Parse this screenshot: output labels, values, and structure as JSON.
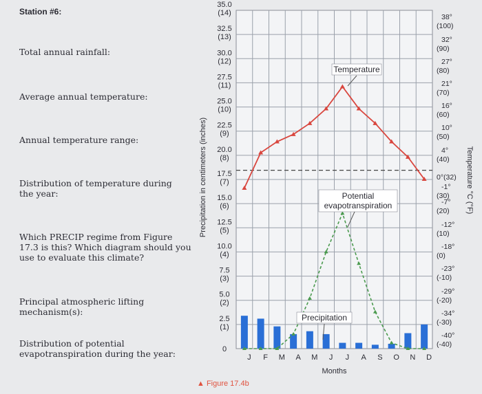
{
  "worksheet": {
    "station": "Station #6:",
    "questions": [
      "Total annual rainfall:",
      "Average annual temperature:",
      "Annual temperature range:",
      "Distribution of temperature during the year:",
      "Which PRECIP regime from Figure 17.3 is this? Which diagram should you use to evaluate this climate?",
      "Principal atmospheric lifting mechanism(s):",
      "Distribution of potential evapotranspiration during the year:"
    ],
    "caption": "▲ Figure 17.4b"
  },
  "chart_data": {
    "type": "line",
    "xlabel": "Months",
    "ylabel_left": "Precipitation in centimeters (inches)",
    "ylabel_right": "Temperature °C (°F)",
    "categories": [
      "J",
      "F",
      "M",
      "A",
      "M",
      "J",
      "J",
      "A",
      "S",
      "O",
      "N",
      "D"
    ],
    "left_ticks": [
      {
        "cm": "35.0",
        "in": "(14)"
      },
      {
        "cm": "32.5",
        "in": "(13)"
      },
      {
        "cm": "30.0",
        "in": "(12)"
      },
      {
        "cm": "27.5",
        "in": "(11)"
      },
      {
        "cm": "25.0",
        "in": "(10)"
      },
      {
        "cm": "22.5",
        "in": "(9)"
      },
      {
        "cm": "20.0",
        "in": "(8)"
      },
      {
        "cm": "17.5",
        "in": "(7)"
      },
      {
        "cm": "15.0",
        "in": "(6)"
      },
      {
        "cm": "12.5",
        "in": "(5)"
      },
      {
        "cm": "10.0",
        "in": "(4)"
      },
      {
        "cm": "7.5",
        "in": "(3)"
      },
      {
        "cm": "5.0",
        "in": "(2)"
      },
      {
        "cm": "2.5",
        "in": "(1)"
      },
      {
        "cm": "0",
        "in": ""
      }
    ],
    "right_ticks": [
      {
        "c": "38°",
        "f": "(100)"
      },
      {
        "c": "32°",
        "f": "(90)"
      },
      {
        "c": "27°",
        "f": "(80)"
      },
      {
        "c": "21°",
        "f": "(70)"
      },
      {
        "c": "16°",
        "f": "(60)"
      },
      {
        "c": "10°",
        "f": "(50)"
      },
      {
        "c": "4°",
        "f": "(40)"
      },
      {
        "c": "0°",
        "f": "(32)"
      },
      {
        "c": "-1°",
        "f": "(30)"
      },
      {
        "c": "-7°",
        "f": "(20)"
      },
      {
        "c": "-12°",
        "f": "(10)"
      },
      {
        "c": "-18°",
        "f": "(0)"
      },
      {
        "c": "-23°",
        "f": "(-10)"
      },
      {
        "c": "-29°",
        "f": "(-20)"
      },
      {
        "c": "-34°",
        "f": "(-30)"
      },
      {
        "c": "-40°",
        "f": "(-40)"
      }
    ],
    "ylim": [
      0,
      35
    ],
    "series": [
      {
        "name": "Temperature",
        "units": "°C",
        "color": "#d9463e",
        "values": [
          -4,
          4,
          7,
          9,
          12,
          16,
          21,
          16,
          12,
          7,
          3,
          -2
        ]
      },
      {
        "name": "Potential evapotranspiration",
        "units": "cm",
        "color": "#4a9a4e",
        "values": [
          0,
          0,
          0,
          1.5,
          5.2,
          10,
          14,
          8.8,
          3.8,
          0.6,
          0,
          0
        ]
      },
      {
        "name": "Precipitation",
        "units": "cm",
        "color": "#2a6fd6",
        "values": [
          3.4,
          3.1,
          2.3,
          1.5,
          1.8,
          1.5,
          0.6,
          0.6,
          0.4,
          0.5,
          1.6,
          2.5
        ]
      }
    ],
    "annotations": [
      "Temperature",
      "Potential evapotranspiration",
      "Precipitation"
    ],
    "grid": true
  }
}
